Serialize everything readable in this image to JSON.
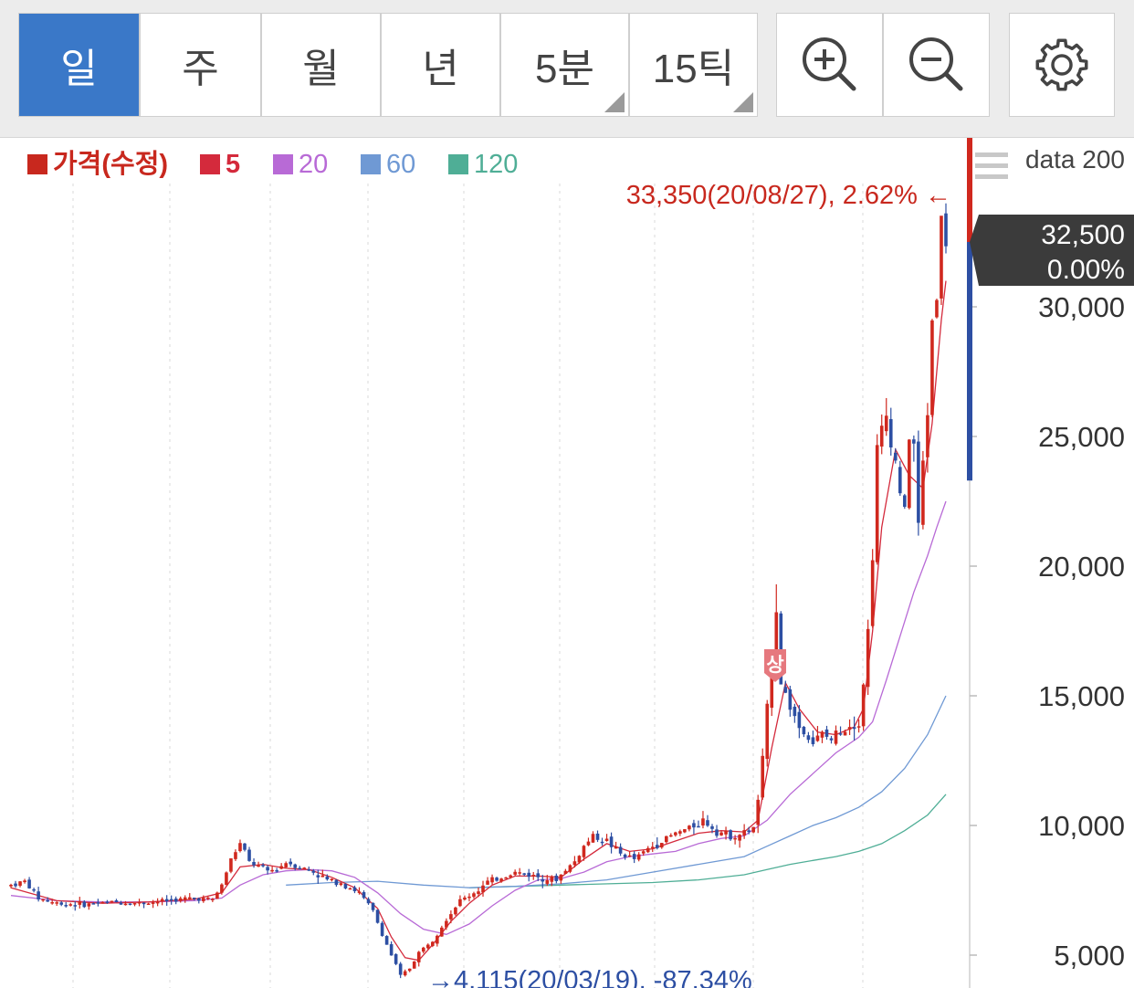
{
  "toolbar": {
    "periods": [
      {
        "label": "일",
        "active": true
      },
      {
        "label": "주",
        "active": false
      },
      {
        "label": "월",
        "active": false
      },
      {
        "label": "년",
        "active": false
      },
      {
        "label": "5분",
        "active": false,
        "has_dropdown": true
      },
      {
        "label": "15틱",
        "active": false,
        "has_dropdown": true
      }
    ],
    "zoom_in_icon": "zoom-in-icon",
    "zoom_out_icon": "zoom-out-icon",
    "settings_icon": "gear-icon"
  },
  "legend": [
    {
      "label": "가격(수정)",
      "color": "#c8281e"
    },
    {
      "label": "5",
      "color": "#d42a3c"
    },
    {
      "label": "20",
      "color": "#b86ad6"
    },
    {
      "label": "60",
      "color": "#6f99d4"
    },
    {
      "label": "120",
      "color": "#4fae96"
    }
  ],
  "data_count_label": "data 200",
  "chart_data": {
    "type": "candlestick",
    "ylim": [
      3800,
      34800
    ],
    "y_ticks": [
      5000,
      10000,
      15000,
      20000,
      25000,
      30000
    ],
    "y_tick_labels": [
      "5,000",
      "10,000",
      "15,000",
      "20,000",
      "25,000",
      "30,000"
    ],
    "current_price": {
      "value": 32500,
      "label": "32,500",
      "change": "0.00%"
    },
    "max_annotation": {
      "value": 33350,
      "label": "33,350(20/08/27), 2.62% ←"
    },
    "min_annotation": {
      "value": 4115,
      "label": "→4,115(20/03/19), -87.34%"
    },
    "upper_limit_marker": "상",
    "colors": {
      "up": "#d0281e",
      "down": "#2d4fa3",
      "ma5": "#d42a3c",
      "ma20": "#b86ad6",
      "ma60": "#6f99d4",
      "ma120": "#4fae96"
    },
    "price_path": [
      [
        0,
        7700
      ],
      [
        3,
        7850
      ],
      [
        6,
        7200
      ],
      [
        10,
        7000
      ],
      [
        16,
        6950
      ],
      [
        22,
        7050
      ],
      [
        28,
        7000
      ],
      [
        34,
        7100
      ],
      [
        40,
        7200
      ],
      [
        44,
        7150
      ],
      [
        46,
        7700
      ],
      [
        48,
        8700
      ],
      [
        50,
        9300
      ],
      [
        52,
        8600
      ],
      [
        54,
        8400
      ],
      [
        56,
        8250
      ],
      [
        58,
        8300
      ],
      [
        60,
        8600
      ],
      [
        63,
        8400
      ],
      [
        66,
        8200
      ],
      [
        69,
        7900
      ],
      [
        72,
        7800
      ],
      [
        76,
        7400
      ],
      [
        79,
        6700
      ],
      [
        81,
        5800
      ],
      [
        83,
        5000
      ],
      [
        84,
        4600
      ],
      [
        85,
        4200
      ],
      [
        87,
        4500
      ],
      [
        89,
        5100
      ],
      [
        92,
        5600
      ],
      [
        95,
        6400
      ],
      [
        98,
        7100
      ],
      [
        101,
        7400
      ],
      [
        104,
        7800
      ],
      [
        107,
        8000
      ],
      [
        110,
        8200
      ],
      [
        113,
        8100
      ],
      [
        116,
        8000
      ],
      [
        119,
        7900
      ],
      [
        121,
        8300
      ],
      [
        123,
        8600
      ],
      [
        125,
        9200
      ],
      [
        127,
        9600
      ],
      [
        130,
        9400
      ],
      [
        133,
        8900
      ],
      [
        136,
        8700
      ],
      [
        139,
        9100
      ],
      [
        142,
        9400
      ],
      [
        145,
        9700
      ],
      [
        148,
        9900
      ],
      [
        151,
        10200
      ],
      [
        154,
        9800
      ],
      [
        157,
        9600
      ],
      [
        160,
        9700
      ],
      [
        162,
        9900
      ],
      [
        163,
        11000
      ],
      [
        164,
        12500
      ],
      [
        165,
        14500
      ],
      [
        166,
        16200
      ],
      [
        167,
        18400
      ],
      [
        168,
        15500
      ],
      [
        170,
        14600
      ],
      [
        172,
        13800
      ],
      [
        175,
        13200
      ],
      [
        177,
        13500
      ],
      [
        179,
        13300
      ],
      [
        181,
        13700
      ],
      [
        183,
        13900
      ],
      [
        185,
        14000
      ],
      [
        186,
        15500
      ],
      [
        187,
        17500
      ],
      [
        188,
        20500
      ],
      [
        189,
        24500
      ],
      [
        191,
        25800
      ],
      [
        193,
        24000
      ],
      [
        195,
        22000
      ],
      [
        196,
        25000
      ],
      [
        197,
        24700
      ],
      [
        198,
        21500
      ],
      [
        199,
        24000
      ],
      [
        200,
        26000
      ],
      [
        201,
        29500
      ],
      [
        202,
        30500
      ],
      [
        203,
        33350
      ],
      [
        204,
        32500
      ]
    ],
    "ma5": [
      [
        0,
        7600
      ],
      [
        10,
        7100
      ],
      [
        20,
        7000
      ],
      [
        30,
        7050
      ],
      [
        40,
        7150
      ],
      [
        46,
        7400
      ],
      [
        50,
        8400
      ],
      [
        55,
        8500
      ],
      [
        60,
        8350
      ],
      [
        65,
        8300
      ],
      [
        70,
        8000
      ],
      [
        75,
        7600
      ],
      [
        80,
        6800
      ],
      [
        83,
        5700
      ],
      [
        86,
        4900
      ],
      [
        89,
        4800
      ],
      [
        92,
        5400
      ],
      [
        96,
        6300
      ],
      [
        100,
        7000
      ],
      [
        105,
        7700
      ],
      [
        110,
        8050
      ],
      [
        115,
        8050
      ],
      [
        120,
        8000
      ],
      [
        125,
        8700
      ],
      [
        130,
        9300
      ],
      [
        135,
        9000
      ],
      [
        140,
        9100
      ],
      [
        145,
        9400
      ],
      [
        150,
        9700
      ],
      [
        155,
        9800
      ],
      [
        160,
        9750
      ],
      [
        163,
        10200
      ],
      [
        166,
        13000
      ],
      [
        169,
        15500
      ],
      [
        172,
        14500
      ],
      [
        176,
        13600
      ],
      [
        180,
        13500
      ],
      [
        184,
        13800
      ],
      [
        186,
        14500
      ],
      [
        188,
        17500
      ],
      [
        190,
        21500
      ],
      [
        193,
        24500
      ],
      [
        196,
        23500
      ],
      [
        199,
        23000
      ],
      [
        201,
        25500
      ],
      [
        203,
        29500
      ],
      [
        204,
        31000
      ]
    ],
    "ma20": [
      [
        0,
        7300
      ],
      [
        10,
        7100
      ],
      [
        20,
        7050
      ],
      [
        30,
        7050
      ],
      [
        40,
        7100
      ],
      [
        46,
        7200
      ],
      [
        50,
        7700
      ],
      [
        55,
        8100
      ],
      [
        60,
        8250
      ],
      [
        65,
        8300
      ],
      [
        70,
        8250
      ],
      [
        75,
        8000
      ],
      [
        80,
        7400
      ],
      [
        85,
        6600
      ],
      [
        90,
        6000
      ],
      [
        95,
        5800
      ],
      [
        100,
        6200
      ],
      [
        105,
        6900
      ],
      [
        110,
        7500
      ],
      [
        115,
        7900
      ],
      [
        120,
        7950
      ],
      [
        125,
        8200
      ],
      [
        130,
        8600
      ],
      [
        135,
        8800
      ],
      [
        140,
        8900
      ],
      [
        145,
        9000
      ],
      [
        150,
        9300
      ],
      [
        155,
        9500
      ],
      [
        160,
        9600
      ],
      [
        165,
        10200
      ],
      [
        170,
        11200
      ],
      [
        175,
        12000
      ],
      [
        180,
        12800
      ],
      [
        185,
        13400
      ],
      [
        188,
        14000
      ],
      [
        191,
        15600
      ],
      [
        194,
        17300
      ],
      [
        197,
        19000
      ],
      [
        200,
        20400
      ],
      [
        202,
        21500
      ],
      [
        204,
        22500
      ]
    ],
    "ma60": [
      [
        60,
        7700
      ],
      [
        70,
        7800
      ],
      [
        80,
        7850
      ],
      [
        90,
        7700
      ],
      [
        100,
        7600
      ],
      [
        110,
        7650
      ],
      [
        120,
        7750
      ],
      [
        130,
        7900
      ],
      [
        140,
        8200
      ],
      [
        150,
        8500
      ],
      [
        160,
        8800
      ],
      [
        165,
        9200
      ],
      [
        170,
        9600
      ],
      [
        175,
        10000
      ],
      [
        180,
        10300
      ],
      [
        185,
        10700
      ],
      [
        190,
        11300
      ],
      [
        195,
        12200
      ],
      [
        200,
        13500
      ],
      [
        204,
        15000
      ]
    ],
    "ma120": [
      [
        100,
        7600
      ],
      [
        120,
        7700
      ],
      [
        140,
        7800
      ],
      [
        150,
        7900
      ],
      [
        160,
        8100
      ],
      [
        165,
        8300
      ],
      [
        170,
        8500
      ],
      [
        175,
        8650
      ],
      [
        180,
        8800
      ],
      [
        185,
        9000
      ],
      [
        190,
        9300
      ],
      [
        195,
        9800
      ],
      [
        200,
        10400
      ],
      [
        204,
        11200
      ]
    ]
  }
}
